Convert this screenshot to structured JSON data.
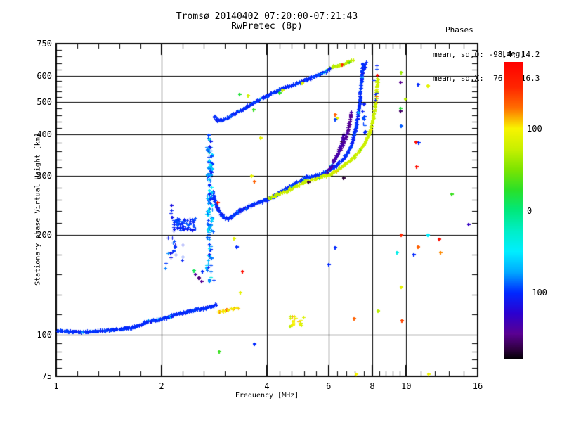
{
  "title": {
    "line1": "Tromsø 20140402 07:20:00-07:21:43",
    "line2": "RwPretec (8p)"
  },
  "stats": {
    "header": "Phases",
    "line_o": "mean, sd,O: -98.4, 14.2",
    "line_x": "mean, sd,X:  76.9, 16.3"
  },
  "axes": {
    "x": {
      "label": "Frequency [MHz]",
      "scale": "log",
      "min": 1,
      "max": 16,
      "major_ticks": [
        1,
        2,
        4,
        6,
        8,
        10,
        16
      ],
      "grid_ticks": [
        2,
        4,
        6,
        8,
        10
      ],
      "minor_per_gap": 4
    },
    "y": {
      "label": "Stationary phase Virtual Height [km]",
      "scale": "log",
      "min": 75,
      "max": 750,
      "major_ticks": [
        75,
        100,
        200,
        300,
        400,
        500,
        600,
        750
      ],
      "grid_ticks": [
        100,
        200,
        300,
        400,
        500,
        600
      ],
      "minor_per_gap": 4
    }
  },
  "colorbar": {
    "label": "[deg]",
    "tick_labels": [
      "100",
      "0",
      "-100"
    ],
    "tick_values": [
      100,
      0,
      -100
    ],
    "value_range": [
      -181,
      181
    ],
    "stops": [
      [
        181,
        "#ff0000"
      ],
      [
        150,
        "#ff2600"
      ],
      [
        125,
        "#ff6e00"
      ],
      [
        100,
        "#f8f400"
      ],
      [
        75,
        "#c8f000"
      ],
      [
        50,
        "#7ce400"
      ],
      [
        25,
        "#2ae028"
      ],
      [
        0,
        "#00e87c"
      ],
      [
        -25,
        "#00eec8"
      ],
      [
        -50,
        "#00eeff"
      ],
      [
        -75,
        "#00a8ff"
      ],
      [
        -100,
        "#0028ff"
      ],
      [
        -125,
        "#2b00d0"
      ],
      [
        -150,
        "#5a0092"
      ],
      [
        -168,
        "#300042"
      ],
      [
        -181,
        "#000000"
      ]
    ]
  },
  "chart_data": {
    "type": "scatter",
    "title": "Tromsø ionogram 20140402 07:20:00-07:21:43 RwPretec (8p)",
    "xlabel": "Frequency [MHz]",
    "ylabel": "Stationary phase Virtual Height [km]",
    "xlim": [
      1,
      16
    ],
    "ylim": [
      75,
      750
    ],
    "xscale": "log",
    "yscale": "log",
    "color_variable": "phase [deg]",
    "color_range": [
      -181,
      181
    ],
    "mean_sd_O": [
      -98.4,
      14.2
    ],
    "mean_sd_X": [
      76.9,
      16.3
    ],
    "traces": [
      {
        "name": "E-region-trace-O",
        "phase": -100,
        "phase_sd": 8,
        "sigma": 1.3,
        "density": 1.6,
        "points": [
          [
            1.0,
            103
          ],
          [
            1.15,
            102
          ],
          [
            1.38,
            103
          ],
          [
            1.63,
            105
          ],
          [
            1.74,
            107
          ],
          [
            1.82,
            110
          ],
          [
            1.95,
            111
          ],
          [
            2.1,
            113
          ],
          [
            2.21,
            116
          ],
          [
            2.35,
            117
          ],
          [
            2.5,
            119
          ],
          [
            2.64,
            120
          ],
          [
            2.76,
            122
          ],
          [
            2.87,
            123
          ]
        ]
      },
      {
        "name": "E-region-trace-X",
        "phase": 105,
        "phase_sd": 18,
        "sigma": 1.2,
        "density": 0.9,
        "points": [
          [
            2.88,
            117
          ],
          [
            3.0,
            118
          ],
          [
            3.1,
            119
          ],
          [
            3.2,
            120
          ],
          [
            3.32,
            121
          ]
        ]
      },
      {
        "name": "F-region-trace-O",
        "phase": -100,
        "phase_sd": 10,
        "sigma": 2.0,
        "density": 1.4,
        "points": [
          [
            2.8,
            270
          ],
          [
            2.84,
            250
          ],
          [
            2.9,
            237
          ],
          [
            2.96,
            230
          ],
          [
            3.02,
            225
          ],
          [
            3.1,
            223
          ],
          [
            3.22,
            230
          ],
          [
            3.36,
            237
          ],
          [
            3.52,
            242
          ],
          [
            3.7,
            247
          ],
          [
            3.9,
            253
          ],
          [
            4.15,
            259
          ],
          [
            4.38,
            270
          ],
          [
            4.64,
            279
          ],
          [
            4.9,
            287
          ],
          [
            5.16,
            296
          ],
          [
            5.45,
            300
          ],
          [
            5.73,
            304
          ],
          [
            6.06,
            315
          ],
          [
            6.35,
            326
          ],
          [
            6.56,
            336
          ],
          [
            6.74,
            348
          ],
          [
            6.87,
            360
          ],
          [
            6.96,
            370
          ],
          [
            7.03,
            383
          ],
          [
            7.12,
            408
          ],
          [
            7.19,
            426
          ],
          [
            7.29,
            465
          ],
          [
            7.36,
            501
          ],
          [
            7.39,
            538
          ],
          [
            7.42,
            566
          ],
          [
            7.46,
            594
          ],
          [
            7.49,
            623
          ],
          [
            7.52,
            655
          ]
        ]
      },
      {
        "name": "F-region-trace-X",
        "phase": 77,
        "phase_sd": 9,
        "sigma": 1.7,
        "density": 1.3,
        "points": [
          [
            4.03,
            258
          ],
          [
            4.3,
            265
          ],
          [
            4.56,
            271
          ],
          [
            4.8,
            279
          ],
          [
            5.04,
            286
          ],
          [
            5.3,
            291
          ],
          [
            5.58,
            297
          ],
          [
            5.85,
            301
          ],
          [
            6.12,
            306
          ],
          [
            6.35,
            313
          ],
          [
            6.59,
            321
          ],
          [
            6.8,
            330
          ],
          [
            7.03,
            339
          ],
          [
            7.22,
            350
          ],
          [
            7.42,
            363
          ],
          [
            7.6,
            377
          ],
          [
            7.74,
            392
          ],
          [
            7.87,
            411
          ],
          [
            7.98,
            431
          ],
          [
            8.06,
            455
          ],
          [
            8.13,
            478
          ],
          [
            8.17,
            503
          ],
          [
            8.2,
            529
          ],
          [
            8.23,
            556
          ],
          [
            8.26,
            580
          ],
          [
            8.28,
            593
          ]
        ]
      },
      {
        "name": "upper-X-streak",
        "phase": 70,
        "phase_sd": 12,
        "sigma": 1.5,
        "density": 1.0,
        "points": [
          [
            6.0,
            630
          ],
          [
            6.3,
            642
          ],
          [
            6.6,
            652
          ],
          [
            6.85,
            662
          ],
          [
            7.05,
            672
          ]
        ]
      },
      {
        "name": "upper-F-trace",
        "phase": -100,
        "phase_sd": 9,
        "sigma": 1.7,
        "density": 1.3,
        "points": [
          [
            2.83,
            454
          ],
          [
            2.9,
            440
          ],
          [
            3.0,
            443
          ],
          [
            3.18,
            459
          ],
          [
            3.36,
            473
          ],
          [
            3.56,
            490
          ],
          [
            3.82,
            512
          ],
          [
            4.1,
            530
          ],
          [
            4.38,
            549
          ],
          [
            4.69,
            562
          ],
          [
            5.04,
            578
          ],
          [
            5.4,
            596
          ],
          [
            5.74,
            611
          ],
          [
            6.0,
            627
          ],
          [
            6.07,
            636
          ]
        ]
      },
      {
        "name": "purple-riser-1",
        "phase": -148,
        "phase_sd": 8,
        "sigma": 1.4,
        "density": 0.8,
        "points": [
          [
            6.13,
            330
          ],
          [
            6.35,
            348
          ],
          [
            6.56,
            370
          ],
          [
            6.74,
            396
          ],
          [
            6.84,
            420
          ],
          [
            6.9,
            445
          ],
          [
            6.95,
            470
          ]
        ]
      },
      {
        "name": "purple-riser-2",
        "phase": -140,
        "phase_sd": 8,
        "sigma": 1.4,
        "density": 0.8,
        "points": [
          [
            5.9,
            307
          ],
          [
            6.1,
            322
          ],
          [
            6.3,
            342
          ],
          [
            6.45,
            362
          ],
          [
            6.57,
            383
          ],
          [
            6.64,
            403
          ]
        ]
      }
    ],
    "clusters": [
      {
        "name": "spread-column-2.7MHz",
        "f": [
          2.69,
          2.81
        ],
        "h": [
          143,
          372
        ],
        "n": 70,
        "phase": -85,
        "phase_sd": 35
      },
      {
        "name": "spread-column-core",
        "f": [
          2.7,
          2.79
        ],
        "h": [
          200,
          335
        ],
        "n": 55,
        "phase": -75,
        "phase_sd": 40
      },
      {
        "name": "blob-2.3MHz-215km",
        "f": [
          2.16,
          2.5
        ],
        "h": [
          206,
          224
        ],
        "n": 55,
        "phase": -100,
        "phase_sd": 15
      },
      {
        "name": "left-column-2.15MHz",
        "f": [
          2.12,
          2.19
        ],
        "h": [
          170,
          245
        ],
        "n": 12,
        "phase": -105,
        "phase_sd": 20
      },
      {
        "name": "sparse-low-2.1MHz",
        "f": [
          2.03,
          2.35
        ],
        "h": [
          150,
          196
        ],
        "n": 10,
        "phase": -100,
        "phase_sd": 25
      },
      {
        "name": "sporadic-E-yellow-4.9MHz",
        "f": [
          4.6,
          5.15
        ],
        "h": [
          106,
          114
        ],
        "n": 16,
        "phase": 95,
        "phase_sd": 30
      },
      {
        "name": "riser-sparse-7.6MHz",
        "f": [
          7.5,
          7.64
        ],
        "h": [
          390,
          495
        ],
        "n": 9,
        "phase": -100,
        "phase_sd": 10
      },
      {
        "name": "riser-top-cluster",
        "f": [
          7.48,
          7.67
        ],
        "h": [
          635,
          668
        ],
        "n": 10,
        "phase": -100,
        "phase_sd": 10
      },
      {
        "name": "high-blue-8.2MHz",
        "f": [
          8.05,
          8.25
        ],
        "h": [
          500,
          650
        ],
        "n": 6,
        "phase": -102,
        "phase_sd": 8
      },
      {
        "name": "column-top-dots",
        "f": [
          2.72,
          2.77
        ],
        "h": [
          350,
          400
        ],
        "n": 6,
        "phase": -80,
        "phase_sd": 60
      }
    ],
    "dots": [
      [
        9.67,
        614,
        60
      ],
      [
        9.62,
        574,
        -150
      ],
      [
        10.8,
        565,
        -100
      ],
      [
        11.5,
        559,
        90
      ],
      [
        9.95,
        511,
        70
      ],
      [
        9.62,
        480,
        20
      ],
      [
        9.62,
        471,
        -160
      ],
      [
        9.67,
        424,
        -90
      ],
      [
        10.65,
        379,
        170
      ],
      [
        10.85,
        377,
        -100
      ],
      [
        10.7,
        320,
        170
      ],
      [
        13.5,
        265,
        30
      ],
      [
        15.1,
        215,
        -130
      ],
      [
        9.67,
        200,
        150
      ],
      [
        11.5,
        200,
        -50
      ],
      [
        12.4,
        194,
        170
      ],
      [
        10.8,
        184,
        130
      ],
      [
        9.4,
        177,
        -40
      ],
      [
        10.5,
        174,
        -100
      ],
      [
        12.5,
        177,
        120
      ],
      [
        6.26,
        183,
        -100
      ],
      [
        6.0,
        163,
        -100
      ],
      [
        9.67,
        139,
        90
      ],
      [
        8.3,
        118,
        70
      ],
      [
        7.1,
        112,
        130
      ],
      [
        9.7,
        110,
        140
      ],
      [
        8.26,
        601,
        170
      ],
      [
        6.55,
        648,
        150
      ],
      [
        3.4,
        155,
        170
      ],
      [
        3.36,
        134,
        90
      ],
      [
        2.92,
        89,
        30
      ],
      [
        3.68,
        94,
        -100
      ],
      [
        2.47,
        156,
        10
      ],
      [
        2.61,
        155,
        -100
      ],
      [
        3.84,
        390,
        90
      ],
      [
        3.34,
        529,
        20
      ],
      [
        3.53,
        523,
        80
      ],
      [
        3.67,
        475,
        30
      ],
      [
        4.34,
        533,
        25
      ],
      [
        5.03,
        570,
        85
      ],
      [
        4.42,
        545,
        80
      ],
      [
        6.26,
        459,
        130
      ],
      [
        6.35,
        447,
        90
      ],
      [
        6.26,
        443,
        -95
      ],
      [
        3.61,
        300,
        90
      ],
      [
        3.68,
        289,
        130
      ],
      [
        2.9,
        250,
        165
      ],
      [
        3.22,
        195,
        90
      ],
      [
        3.28,
        184,
        -100
      ],
      [
        6.61,
        296,
        -170
      ],
      [
        2.5,
        152,
        -145
      ],
      [
        2.56,
        148,
        -155
      ],
      [
        2.6,
        145,
        -150
      ],
      [
        11.6,
        76,
        95
      ],
      [
        7.2,
        76,
        100
      ],
      [
        2.73,
        399,
        -95
      ],
      [
        5.25,
        288,
        -165
      ]
    ]
  }
}
